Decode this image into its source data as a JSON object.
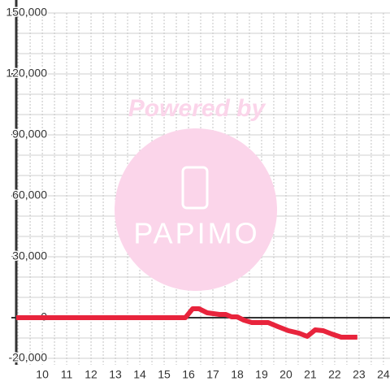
{
  "chart_data": {
    "type": "line",
    "x": [
      8.93,
      15.87,
      16.17,
      16.43,
      16.77,
      17.27,
      17.53,
      17.77,
      18.0,
      18.27,
      18.6,
      19.27,
      19.67,
      20.1,
      20.53,
      20.87,
      21.2,
      21.53,
      21.87,
      22.27,
      22.93
    ],
    "series": [
      {
        "color": "#e8243c",
        "values": [
          0,
          0,
          4400,
          4400,
          2400,
          1600,
          1600,
          400,
          400,
          -1200,
          -2400,
          -2400,
          -4400,
          -6400,
          -7600,
          -9200,
          -6000,
          -6400,
          -8000,
          -9600,
          -9600
        ]
      }
    ],
    "xlim": [
      8.93,
      24.27
    ],
    "xticks": [
      10,
      11,
      12,
      13,
      14,
      15,
      16,
      17,
      18,
      19,
      20,
      21,
      22,
      23,
      24
    ],
    "xgrid": [
      9,
      9.5,
      10,
      10.5,
      11,
      11.5,
      12,
      12.5,
      13,
      13.5,
      14,
      14.5,
      15,
      15.5,
      16,
      16.5,
      17,
      17.5,
      18,
      18.5,
      19,
      19.5,
      20,
      20.5,
      21,
      21.5,
      22,
      22.5,
      23,
      23.5,
      24
    ],
    "ylim": [
      -20000,
      150000
    ],
    "yticks": [
      {
        "value": -20000,
        "label": "-20,000"
      },
      0,
      {
        "value": 30000,
        "label": "30,000"
      },
      {
        "value": 60000,
        "label": "60,000"
      },
      {
        "value": 90000,
        "label": "90,000"
      },
      {
        "value": 120000,
        "label": "120,000"
      },
      {
        "value": 150000,
        "label": "150,000"
      }
    ],
    "ygrid": [
      -20000,
      -10000,
      0,
      10000,
      20000,
      30000,
      40000,
      50000,
      60000,
      70000,
      80000,
      90000,
      100000,
      110000,
      120000,
      130000,
      140000,
      150000
    ],
    "grid": true,
    "watermark": {
      "top": "Powered by",
      "logo": "PAPIMO"
    }
  }
}
